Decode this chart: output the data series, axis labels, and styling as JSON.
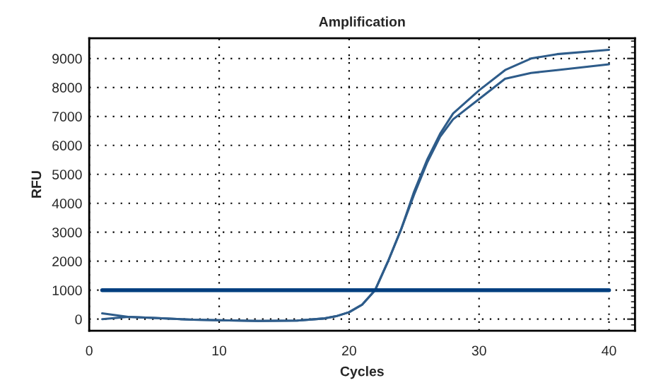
{
  "chart_data": {
    "type": "line",
    "title": "Amplification",
    "xlabel": "Cycles",
    "ylabel": "RFU",
    "xlim": [
      0,
      42
    ],
    "xticks": [
      0,
      10,
      20,
      30,
      40
    ],
    "ylim": [
      -400,
      9700
    ],
    "yticks": [
      0,
      1000,
      2000,
      3000,
      4000,
      5000,
      6000,
      7000,
      8000,
      9000
    ],
    "grid": true,
    "legend": false,
    "line_style": "solid",
    "marker": "none",
    "ref_lines": [
      {
        "axis": "y",
        "value": 1000,
        "color": "#003f7f"
      }
    ],
    "series": [
      {
        "color": "#2e5c8a",
        "x": [
          1,
          3,
          5,
          8,
          10,
          13,
          16,
          18,
          19,
          20,
          21,
          22,
          23,
          24,
          25,
          26,
          27,
          28,
          30,
          32,
          34,
          36,
          40
        ],
        "values": [
          200,
          80,
          40,
          -20,
          -40,
          -60,
          -50,
          20,
          100,
          240,
          500,
          1000,
          2000,
          3100,
          4400,
          5500,
          6400,
          7100,
          7900,
          8600,
          9000,
          9150,
          9300
        ]
      },
      {
        "color": "#2e5c8a",
        "x": [
          1,
          3,
          5,
          8,
          10,
          13,
          16,
          18,
          19,
          20,
          21,
          22,
          23,
          24,
          25,
          26,
          27,
          28,
          30,
          32,
          34,
          36,
          40
        ],
        "values": [
          0,
          80,
          40,
          -20,
          -40,
          -60,
          -50,
          20,
          100,
          240,
          500,
          1000,
          2000,
          3100,
          4300,
          5400,
          6300,
          6900,
          7600,
          8300,
          8500,
          8600,
          8800
        ]
      }
    ]
  }
}
